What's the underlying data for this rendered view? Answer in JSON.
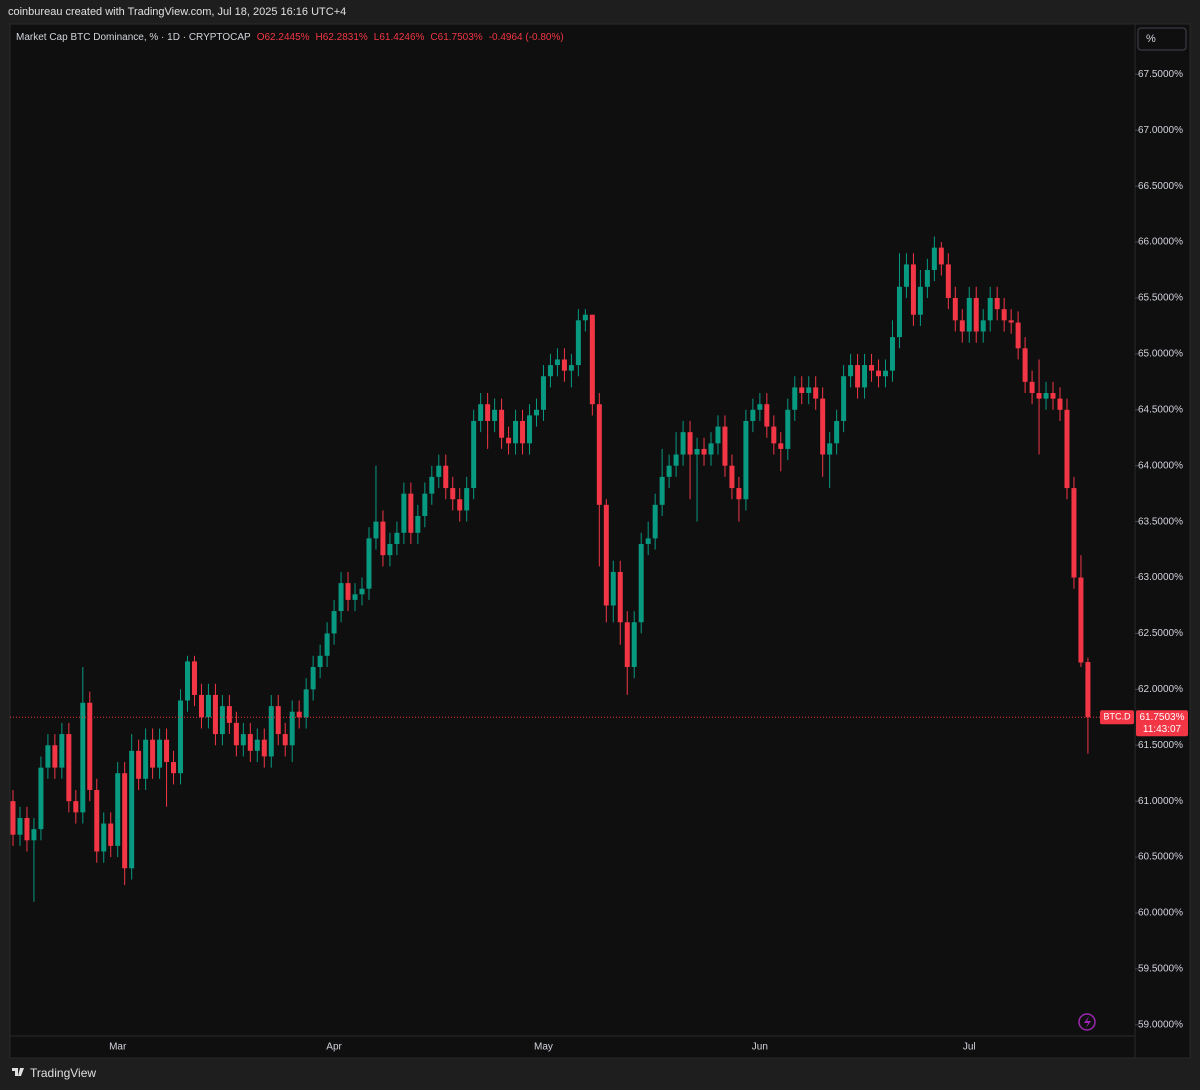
{
  "caption": "coinbureau created with TradingView.com, Jul 18, 2025 16:16 UTC+4",
  "footer": "TradingView",
  "scale_button": "%",
  "chart_data": {
    "type": "candlestick",
    "title": "Market Cap BTC Dominance, % · 1D · CRYPTOCAP",
    "legend": {
      "open": "O62.2445%",
      "high": "H62.2831%",
      "low": "L61.4246%",
      "close": "C61.7503%",
      "change": "-0.4964 (-0.80%)"
    },
    "last_price": {
      "symbol": "BTC.D",
      "label": "61.7503%",
      "countdown": "11:43:07"
    },
    "up_color": "#089981",
    "down_color": "#f23645",
    "categories": [
      null,
      null,
      null,
      null,
      null,
      null,
      null,
      null,
      null,
      null,
      null,
      null,
      null,
      null,
      null,
      "Mar",
      null,
      null,
      null,
      null,
      null,
      null,
      null,
      null,
      null,
      null,
      null,
      null,
      null,
      null,
      null,
      null,
      null,
      null,
      null,
      null,
      null,
      null,
      null,
      null,
      null,
      null,
      null,
      null,
      null,
      null,
      "Apr",
      null,
      null,
      null,
      null,
      null,
      null,
      null,
      null,
      null,
      null,
      null,
      null,
      null,
      null,
      null,
      null,
      null,
      null,
      null,
      null,
      null,
      null,
      null,
      null,
      null,
      null,
      null,
      null,
      null,
      "May",
      null,
      null,
      null,
      null,
      null,
      null,
      null,
      null,
      null,
      null,
      null,
      null,
      null,
      null,
      null,
      null,
      null,
      null,
      null,
      null,
      null,
      null,
      null,
      null,
      null,
      null,
      null,
      null,
      null,
      null,
      "Jun",
      null,
      null,
      null,
      null,
      null,
      null,
      null,
      null,
      null,
      null,
      null,
      null,
      null,
      null,
      null,
      null,
      null,
      null,
      null,
      null,
      null,
      null,
      null,
      null,
      null,
      null,
      null,
      null,
      null,
      "Jul",
      null,
      null,
      null,
      null,
      null,
      null,
      null,
      null,
      null,
      null,
      null,
      null,
      null,
      null,
      null,
      null,
      null
    ],
    "open": [
      61.0,
      60.7,
      60.85,
      60.65,
      60.75,
      61.3,
      61.5,
      61.3,
      61.6,
      61.0,
      60.9,
      61.88,
      61.1,
      60.55,
      60.8,
      60.6,
      61.25,
      60.4,
      61.45,
      61.2,
      61.55,
      61.3,
      61.55,
      61.35,
      61.25,
      61.9,
      62.25,
      61.95,
      61.75,
      61.95,
      61.6,
      61.85,
      61.7,
      61.5,
      61.6,
      61.45,
      61.55,
      61.4,
      61.85,
      61.6,
      61.5,
      61.8,
      61.75,
      62.0,
      62.2,
      62.3,
      62.5,
      62.7,
      62.95,
      62.8,
      62.85,
      62.9,
      63.35,
      63.5,
      63.2,
      63.3,
      63.4,
      63.75,
      63.4,
      63.55,
      63.75,
      63.9,
      64.0,
      63.8,
      63.7,
      63.6,
      63.8,
      64.4,
      64.55,
      64.4,
      64.5,
      64.25,
      64.2,
      64.4,
      64.2,
      64.45,
      64.5,
      64.8,
      64.9,
      64.95,
      64.85,
      64.9,
      65.3,
      65.35,
      64.55,
      63.65,
      62.75,
      63.05,
      62.6,
      62.2,
      62.6,
      63.3,
      63.35,
      63.65,
      63.9,
      64.0,
      64.1,
      64.3,
      64.1,
      64.15,
      64.1,
      64.2,
      64.35,
      64.0,
      63.8,
      63.7,
      64.4,
      64.5,
      64.55,
      64.35,
      64.2,
      64.15,
      64.5,
      64.7,
      64.65,
      64.7,
      64.6,
      64.1,
      64.2,
      64.4,
      64.8,
      64.9,
      64.7,
      64.9,
      64.85,
      64.8,
      64.85,
      65.15,
      65.6,
      65.8,
      65.35,
      65.6,
      65.75,
      65.95,
      65.8,
      65.5,
      65.3,
      65.2,
      65.5,
      65.2,
      65.3,
      65.5,
      65.4,
      65.3,
      65.28,
      65.05,
      64.75,
      64.65,
      64.6,
      64.65,
      64.6,
      64.5,
      63.8,
      63.0,
      62.2445
    ],
    "high": [
      61.1,
      60.95,
      60.95,
      60.85,
      61.4,
      61.6,
      61.6,
      61.7,
      61.7,
      61.1,
      62.2,
      61.98,
      61.2,
      60.9,
      60.9,
      61.35,
      61.35,
      61.6,
      61.55,
      61.65,
      61.65,
      61.65,
      61.65,
      61.45,
      62.0,
      62.3,
      62.3,
      62.05,
      62.05,
      62.05,
      61.95,
      61.95,
      61.8,
      61.7,
      61.7,
      61.65,
      61.65,
      61.95,
      61.95,
      61.7,
      61.9,
      61.9,
      62.1,
      62.3,
      62.4,
      62.6,
      62.8,
      63.05,
      63.05,
      62.95,
      63.0,
      63.45,
      64.0,
      63.6,
      63.4,
      63.5,
      63.85,
      63.85,
      63.65,
      63.85,
      64.0,
      64.1,
      64.1,
      63.9,
      63.8,
      63.9,
      64.5,
      64.65,
      64.65,
      64.6,
      64.6,
      64.35,
      64.5,
      64.5,
      64.55,
      64.6,
      64.9,
      65.0,
      65.05,
      65.05,
      65.0,
      65.4,
      65.4,
      65.35,
      64.65,
      63.7,
      63.15,
      63.15,
      62.7,
      62.7,
      63.4,
      63.5,
      63.75,
      64.15,
      64.1,
      64.3,
      64.4,
      64.4,
      64.25,
      64.25,
      64.3,
      64.45,
      64.45,
      64.1,
      63.9,
      64.5,
      64.6,
      64.65,
      64.65,
      64.45,
      64.3,
      64.6,
      64.8,
      64.8,
      64.8,
      64.8,
      64.7,
      64.3,
      64.5,
      64.9,
      65.0,
      65.0,
      65.0,
      65.0,
      64.95,
      64.95,
      65.3,
      65.9,
      65.9,
      65.9,
      65.75,
      65.85,
      66.05,
      66.0,
      65.9,
      65.6,
      65.4,
      65.6,
      65.6,
      65.4,
      65.6,
      65.6,
      65.5,
      65.4,
      65.38,
      65.15,
      64.85,
      64.95,
      64.75,
      64.75,
      64.7,
      64.6,
      63.9,
      63.2,
      62.2831
    ],
    "low": [
      60.6,
      60.6,
      60.55,
      60.1,
      60.65,
      61.2,
      61.2,
      61.2,
      60.9,
      60.8,
      60.8,
      61.0,
      60.45,
      60.45,
      60.5,
      60.5,
      60.25,
      60.3,
      61.1,
      61.1,
      61.2,
      61.2,
      60.95,
      61.15,
      61.15,
      61.8,
      61.85,
      61.65,
      61.65,
      61.5,
      61.5,
      61.6,
      61.4,
      61.4,
      61.35,
      61.35,
      61.3,
      61.3,
      61.5,
      61.4,
      61.35,
      61.65,
      61.65,
      61.9,
      62.1,
      62.2,
      62.4,
      62.6,
      62.7,
      62.7,
      62.75,
      62.8,
      63.25,
      63.1,
      63.1,
      63.2,
      63.3,
      63.3,
      63.3,
      63.45,
      63.65,
      63.8,
      63.7,
      63.6,
      63.5,
      63.5,
      63.7,
      64.3,
      64.15,
      64.3,
      64.15,
      64.1,
      64.1,
      64.1,
      64.1,
      64.35,
      64.4,
      64.7,
      64.8,
      64.75,
      64.7,
      64.8,
      65.2,
      64.45,
      63.1,
      62.6,
      62.6,
      62.4,
      61.95,
      62.1,
      62.5,
      63.2,
      63.25,
      63.55,
      63.8,
      63.9,
      64.0,
      63.7,
      63.5,
      64.0,
      64.0,
      64.1,
      63.9,
      63.7,
      63.5,
      63.6,
      64.3,
      64.4,
      64.25,
      64.1,
      63.95,
      64.05,
      64.4,
      64.55,
      64.55,
      64.5,
      63.9,
      63.8,
      64.1,
      64.3,
      64.7,
      64.6,
      64.6,
      64.75,
      64.7,
      64.7,
      64.75,
      65.05,
      65.5,
      65.25,
      65.25,
      65.5,
      65.65,
      65.7,
      65.4,
      65.2,
      65.1,
      65.1,
      65.1,
      65.1,
      65.2,
      65.3,
      65.2,
      65.18,
      64.95,
      64.65,
      64.55,
      64.1,
      64.5,
      64.5,
      64.4,
      63.7,
      62.9,
      62.2,
      61.4246
    ],
    "close": [
      60.7,
      60.85,
      60.65,
      60.75,
      61.3,
      61.5,
      61.3,
      61.6,
      61.0,
      60.9,
      61.88,
      61.1,
      60.55,
      60.8,
      60.6,
      61.25,
      60.4,
      61.45,
      61.2,
      61.55,
      61.3,
      61.55,
      61.35,
      61.25,
      61.9,
      62.25,
      61.95,
      61.75,
      61.95,
      61.6,
      61.85,
      61.7,
      61.5,
      61.6,
      61.45,
      61.55,
      61.4,
      61.85,
      61.6,
      61.5,
      61.8,
      61.75,
      62.0,
      62.2,
      62.3,
      62.5,
      62.7,
      62.95,
      62.8,
      62.85,
      62.9,
      63.35,
      63.5,
      63.2,
      63.3,
      63.4,
      63.75,
      63.4,
      63.55,
      63.75,
      63.9,
      64.0,
      63.8,
      63.7,
      63.6,
      63.8,
      64.4,
      64.55,
      64.4,
      64.5,
      64.25,
      64.2,
      64.4,
      64.2,
      64.45,
      64.5,
      64.8,
      64.9,
      64.95,
      64.85,
      64.9,
      65.3,
      65.35,
      64.55,
      63.65,
      62.75,
      63.05,
      62.6,
      62.2,
      62.6,
      63.3,
      63.35,
      63.65,
      63.9,
      64.0,
      64.1,
      64.3,
      64.1,
      64.15,
      64.1,
      64.2,
      64.35,
      64.0,
      63.8,
      63.7,
      64.4,
      64.5,
      64.55,
      64.35,
      64.2,
      64.15,
      64.5,
      64.7,
      64.65,
      64.7,
      64.6,
      64.1,
      64.2,
      64.4,
      64.8,
      64.9,
      64.7,
      64.9,
      64.85,
      64.8,
      64.85,
      65.15,
      65.6,
      65.8,
      65.35,
      65.6,
      65.75,
      65.95,
      65.8,
      65.5,
      65.3,
      65.2,
      65.5,
      65.2,
      65.3,
      65.5,
      65.4,
      65.3,
      65.28,
      65.05,
      64.75,
      64.65,
      64.6,
      64.65,
      64.6,
      64.5,
      63.8,
      63.0,
      62.24,
      61.7503
    ],
    "ylim": [
      58.9,
      67.95
    ],
    "yticks": [
      {
        "value": 59.0,
        "label": "59.0000%"
      },
      {
        "value": 59.5,
        "label": "59.5000%"
      },
      {
        "value": 60.0,
        "label": "60.0000%"
      },
      {
        "value": 60.5,
        "label": "60.5000%"
      },
      {
        "value": 61.0,
        "label": "61.0000%"
      },
      {
        "value": 61.5,
        "label": "61.5000%"
      },
      {
        "value": 62.0,
        "label": "62.0000%"
      },
      {
        "value": 62.5,
        "label": "62.5000%"
      },
      {
        "value": 63.0,
        "label": "63.0000%"
      },
      {
        "value": 63.5,
        "label": "63.5000%"
      },
      {
        "value": 64.0,
        "label": "64.0000%"
      },
      {
        "value": 64.5,
        "label": "64.5000%"
      },
      {
        "value": 65.0,
        "label": "65.0000%"
      },
      {
        "value": 65.5,
        "label": "65.5000%"
      },
      {
        "value": 66.0,
        "label": "66.0000%"
      },
      {
        "value": 66.5,
        "label": "66.5000%"
      },
      {
        "value": 67.0,
        "label": "67.0000%"
      },
      {
        "value": 67.5,
        "label": "67.5000%"
      }
    ],
    "grid": false
  }
}
